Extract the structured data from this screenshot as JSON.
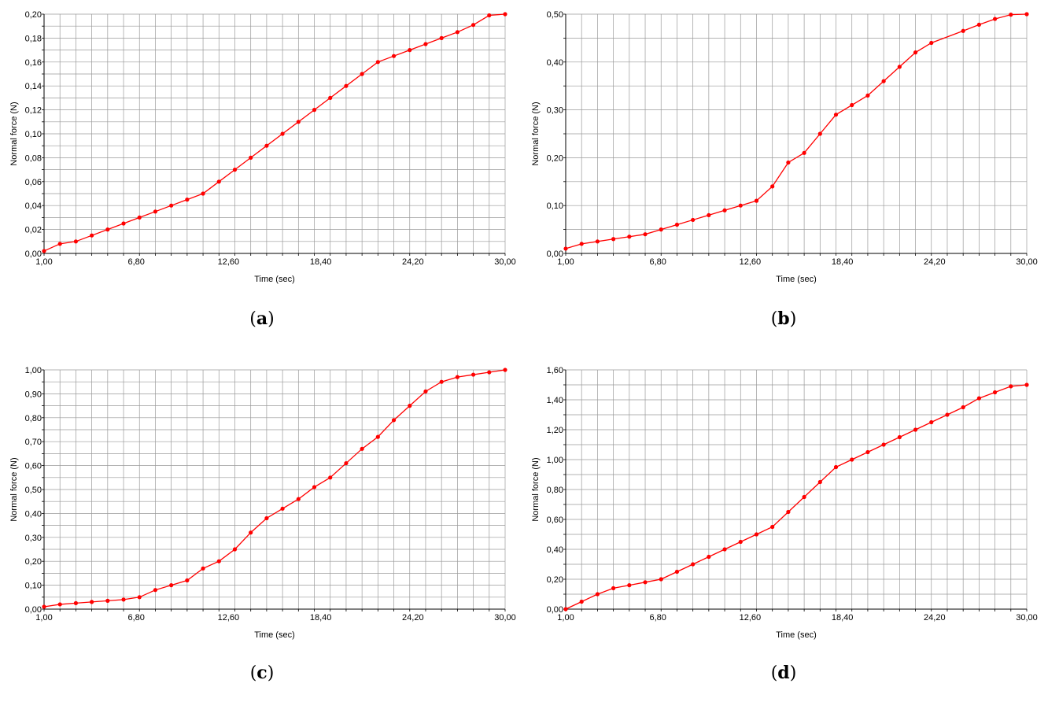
{
  "chart_data": [
    {
      "type": "line",
      "panel": "a",
      "caption_open": "(",
      "caption_letter": "a",
      "caption_close": ")",
      "xlabel": "Time (sec)",
      "ylabel": "Normal force (N)",
      "xlim": [
        1.0,
        30.0
      ],
      "ylim": [
        0.0,
        0.2
      ],
      "x_tick_values": [
        1.0,
        6.8,
        12.6,
        18.4,
        24.2,
        30.0
      ],
      "x_tick_labels": [
        "1,00",
        "6,80",
        "12,60",
        "18,40",
        "24,20",
        "30,00"
      ],
      "y_tick_values": [
        0,
        0.02,
        0.04,
        0.06,
        0.08,
        0.1,
        0.12,
        0.14,
        0.16,
        0.18,
        0.2
      ],
      "y_tick_labels": [
        "0,00",
        "0,02",
        "0,04",
        "0,06",
        "0,08",
        "0,10",
        "0,12",
        "0,14",
        "0,16",
        "0,18",
        "0,20"
      ],
      "grid": true,
      "color": "#ff0000",
      "x": [
        1,
        2,
        3,
        4,
        5,
        6,
        7,
        8,
        9,
        10,
        11,
        12,
        13,
        14,
        15,
        16,
        17,
        18,
        19,
        20,
        21,
        22,
        23,
        24,
        25,
        26,
        27,
        28,
        29,
        30
      ],
      "y": [
        0.002,
        0.008,
        0.01,
        0.015,
        0.02,
        0.025,
        0.03,
        0.035,
        0.04,
        0.045,
        0.05,
        0.06,
        0.07,
        0.08,
        0.09,
        0.1,
        0.11,
        0.12,
        0.13,
        0.14,
        0.15,
        0.16,
        0.165,
        0.17,
        0.175,
        0.18,
        0.185,
        0.191,
        0.199,
        0.2
      ]
    },
    {
      "type": "line",
      "panel": "b",
      "caption_open": "(",
      "caption_letter": "b",
      "caption_close": ")",
      "xlabel": "Time (sec)",
      "ylabel": "Normal force (N)",
      "xlim": [
        1.0,
        30.0
      ],
      "ylim": [
        0.0,
        0.5
      ],
      "x_tick_values": [
        1.0,
        6.8,
        12.6,
        18.4,
        24.2,
        30.0
      ],
      "x_tick_labels": [
        "1,00",
        "6,80",
        "12,60",
        "18,40",
        "24,20",
        "30,00"
      ],
      "y_tick_values": [
        0,
        0.1,
        0.2,
        0.3,
        0.4,
        0.5
      ],
      "y_tick_labels": [
        "0,00",
        "0,10",
        "0,20",
        "0,30",
        "0,40",
        "0,50"
      ],
      "grid": true,
      "color": "#ff0000",
      "x": [
        1,
        2,
        3,
        4,
        5,
        6,
        7,
        8,
        9,
        10,
        11,
        12,
        13,
        14,
        15,
        16,
        17,
        18,
        19,
        20,
        21,
        22,
        23,
        24,
        26,
        27,
        28,
        29,
        30
      ],
      "y": [
        0.01,
        0.02,
        0.025,
        0.03,
        0.035,
        0.04,
        0.05,
        0.06,
        0.07,
        0.08,
        0.09,
        0.1,
        0.11,
        0.14,
        0.19,
        0.21,
        0.25,
        0.29,
        0.31,
        0.33,
        0.36,
        0.39,
        0.42,
        0.44,
        0.465,
        0.478,
        0.49,
        0.499,
        0.5
      ]
    },
    {
      "type": "line",
      "panel": "c",
      "caption_open": "(",
      "caption_letter": "c",
      "caption_close": ")",
      "xlabel": "Time (sec)",
      "ylabel": "Normal force (N)",
      "xlim": [
        1.0,
        30.0
      ],
      "ylim": [
        0.0,
        1.0
      ],
      "x_tick_values": [
        1.0,
        6.8,
        12.6,
        18.4,
        24.2,
        30.0
      ],
      "x_tick_labels": [
        "1,00",
        "6,80",
        "12,60",
        "18,40",
        "24,20",
        "30,00"
      ],
      "y_tick_values": [
        0,
        0.1,
        0.2,
        0.3,
        0.4,
        0.5,
        0.6,
        0.7,
        0.8,
        0.9,
        1.0
      ],
      "y_tick_labels": [
        "0,00",
        "0,10",
        "0,20",
        "0,30",
        "0,40",
        "0,50",
        "0,60",
        "0,70",
        "0,80",
        "0,90",
        "1,00"
      ],
      "grid": true,
      "color": "#ff0000",
      "x": [
        1,
        2,
        3,
        4,
        5,
        6,
        7,
        8,
        9,
        10,
        11,
        12,
        13,
        14,
        15,
        16,
        17,
        18,
        19,
        20,
        21,
        22,
        23,
        24,
        25,
        26,
        27,
        28,
        29,
        30
      ],
      "y": [
        0.01,
        0.02,
        0.025,
        0.03,
        0.035,
        0.04,
        0.05,
        0.08,
        0.1,
        0.12,
        0.17,
        0.2,
        0.25,
        0.32,
        0.38,
        0.42,
        0.46,
        0.51,
        0.55,
        0.61,
        0.67,
        0.72,
        0.79,
        0.85,
        0.91,
        0.95,
        0.97,
        0.98,
        0.99,
        1.0
      ]
    },
    {
      "type": "line",
      "panel": "d",
      "caption_open": "(",
      "caption_letter": "d",
      "caption_close": ")",
      "xlabel": "Time (sec)",
      "ylabel": "Normal force (N)",
      "xlim": [
        1.0,
        30.0
      ],
      "ylim": [
        0.0,
        1.6
      ],
      "x_tick_values": [
        1.0,
        6.8,
        12.6,
        18.4,
        24.2,
        30.0
      ],
      "x_tick_labels": [
        "1,00",
        "6,80",
        "12,60",
        "18,40",
        "24,20",
        "30,00"
      ],
      "y_tick_values": [
        0,
        0.2,
        0.4,
        0.6,
        0.8,
        1.0,
        1.2,
        1.4,
        1.6
      ],
      "y_tick_labels": [
        "0,00",
        "0,20",
        "0,40",
        "0,60",
        "0,80",
        "1,00",
        "1,20",
        "1,40",
        "1,60"
      ],
      "grid": true,
      "color": "#ff0000",
      "x": [
        1,
        2,
        3,
        4,
        5,
        6,
        7,
        8,
        9,
        10,
        11,
        12,
        13,
        14,
        15,
        16,
        17,
        18,
        19,
        20,
        21,
        22,
        23,
        24,
        25,
        26,
        27,
        28,
        29,
        30
      ],
      "y": [
        0.0,
        0.05,
        0.1,
        0.14,
        0.16,
        0.18,
        0.2,
        0.25,
        0.3,
        0.35,
        0.4,
        0.45,
        0.5,
        0.55,
        0.65,
        0.75,
        0.85,
        0.95,
        1.0,
        1.05,
        1.1,
        1.15,
        1.2,
        1.25,
        1.3,
        1.35,
        1.41,
        1.45,
        1.49,
        1.5
      ]
    }
  ]
}
